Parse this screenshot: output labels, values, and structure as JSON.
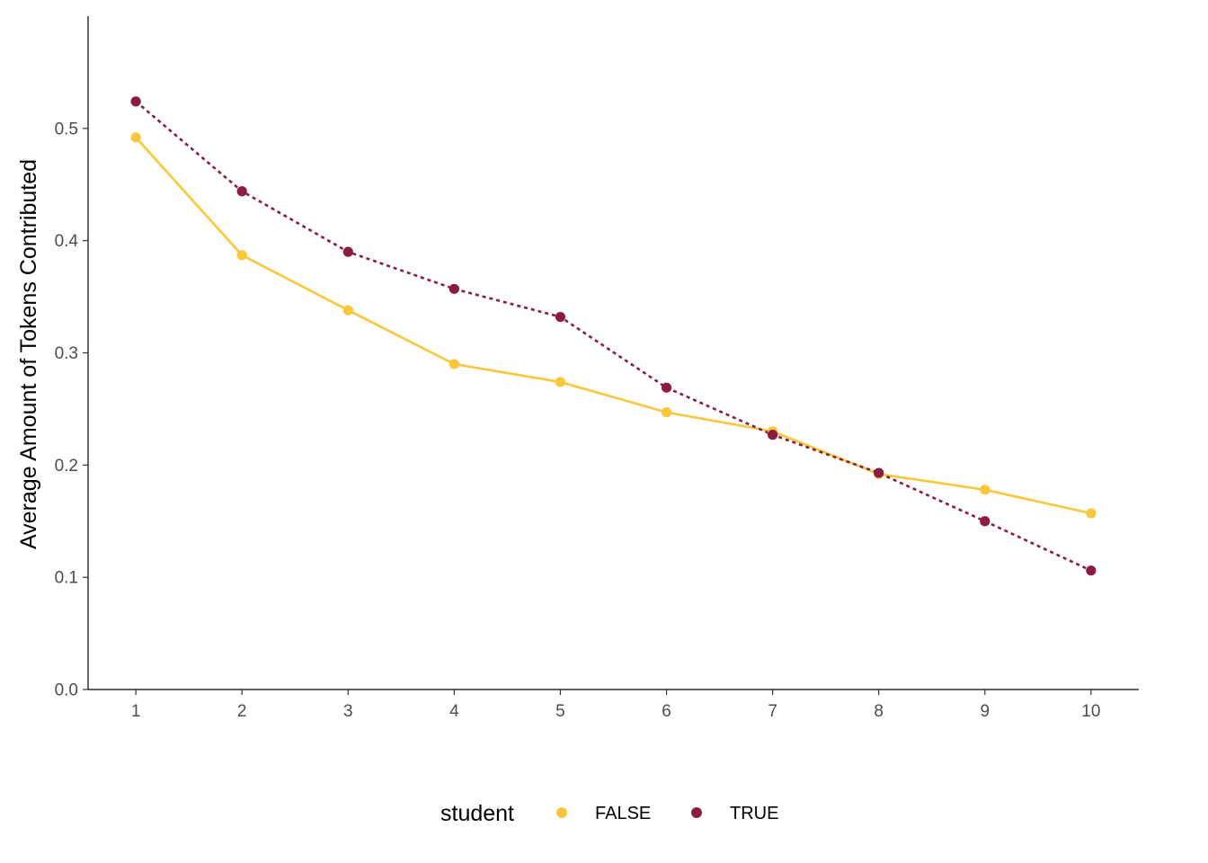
{
  "chart_data": {
    "type": "line",
    "x": [
      1,
      2,
      3,
      4,
      5,
      6,
      7,
      8,
      9,
      10
    ],
    "x_ticks": [
      "1",
      "2",
      "3",
      "4",
      "5",
      "6",
      "7",
      "8",
      "9",
      "10"
    ],
    "y_ticks": [
      "0.0",
      "0.1",
      "0.2",
      "0.3",
      "0.4",
      "0.5"
    ],
    "xlabel": "",
    "ylabel": "Average Amount of Tokens Contributed",
    "xlim": [
      0.55,
      10.45
    ],
    "ylim": [
      0,
      0.6
    ],
    "grid": false,
    "legend": {
      "title": "student",
      "placement": "bottom"
    },
    "series": [
      {
        "name": "FALSE",
        "color": "#FBC63A",
        "line_style": "solid",
        "values": [
          0.492,
          0.387,
          0.338,
          0.29,
          0.274,
          0.247,
          0.23,
          0.192,
          0.178,
          0.157
        ]
      },
      {
        "name": "TRUE",
        "color": "#8A1C40",
        "line_style": "dotted",
        "values": [
          0.524,
          0.444,
          0.39,
          0.357,
          0.332,
          0.269,
          0.227,
          0.193,
          0.15,
          0.106
        ]
      }
    ]
  }
}
